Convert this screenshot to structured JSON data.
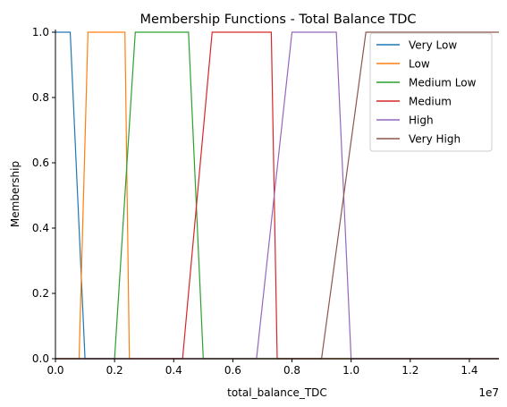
{
  "chart_data": {
    "type": "line",
    "title": "Membership Functions - Total Balance TDC",
    "xlabel": "total_balance_TDC",
    "ylabel": "Membership",
    "x_multiplier_label": "1e7",
    "xlim": [
      0,
      15000000
    ],
    "ylim": [
      0,
      1.0
    ],
    "x_ticks": [
      0,
      2000000,
      4000000,
      6000000,
      8000000,
      10000000,
      12000000,
      14000000
    ],
    "x_tick_labels": [
      "0.0",
      "0.2",
      "0.4",
      "0.6",
      "0.8",
      "1.0",
      "1.2",
      "1.4"
    ],
    "y_ticks": [
      0,
      0.2,
      0.4,
      0.6,
      0.8,
      1.0
    ],
    "y_tick_labels": [
      "0.0",
      "0.2",
      "0.4",
      "0.6",
      "0.8",
      "1.0"
    ],
    "grid": false,
    "legend_position": "top-right",
    "series": [
      {
        "name": "Very Low",
        "color": "#1f77b4",
        "x": [
          0,
          500000,
          1000000,
          15000000
        ],
        "y": [
          1,
          1,
          0,
          0
        ]
      },
      {
        "name": "Low",
        "color": "#ff7f0e",
        "x": [
          0,
          800000,
          1100000,
          2350000,
          2500000,
          15000000
        ],
        "y": [
          0,
          0,
          1,
          1,
          0,
          0
        ]
      },
      {
        "name": "Medium Low",
        "color": "#2ca02c",
        "x": [
          0,
          2000000,
          2700000,
          4500000,
          5000000,
          15000000
        ],
        "y": [
          0,
          0,
          1,
          1,
          0,
          0
        ]
      },
      {
        "name": "Medium",
        "color": "#d62728",
        "x": [
          0,
          4300000,
          5300000,
          7300000,
          7500000,
          15000000
        ],
        "y": [
          0,
          0,
          1,
          1,
          0,
          0
        ]
      },
      {
        "name": "High",
        "color": "#9467bd",
        "x": [
          0,
          6800000,
          8000000,
          9500000,
          10000000,
          15000000
        ],
        "y": [
          0,
          0,
          1,
          1,
          0,
          0
        ]
      },
      {
        "name": "Very High",
        "color": "#8c564b",
        "x": [
          0,
          9000000,
          10500000,
          15000000
        ],
        "y": [
          0,
          0,
          1,
          1
        ]
      }
    ]
  }
}
